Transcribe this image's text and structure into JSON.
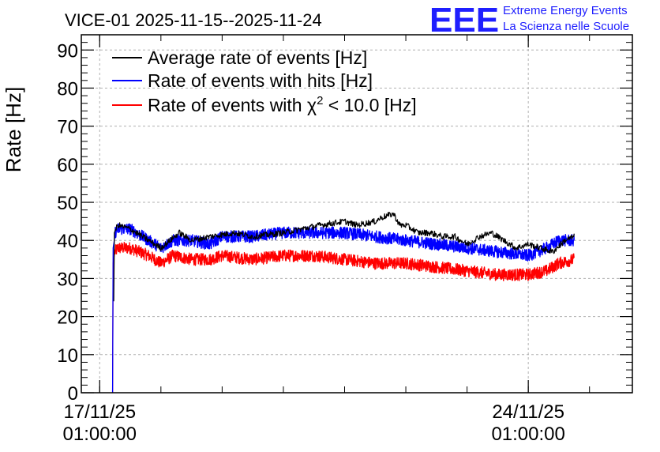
{
  "chart_data": {
    "type": "line",
    "title": "VICE-01 2025-11-15--2025-11-24",
    "ylabel": "Rate [Hz]",
    "xlabel": "",
    "ylim": [
      0,
      94
    ],
    "xlim_days": [
      -0.3,
      8.7
    ],
    "y_ticks": [
      0,
      10,
      20,
      30,
      40,
      50,
      60,
      70,
      80,
      90
    ],
    "x_ticks": [
      {
        "day": 0,
        "date": "17/11/25",
        "time": "01:00:00"
      },
      {
        "day": 7,
        "date": "24/11/25",
        "time": "01:00:00"
      }
    ],
    "grid": true,
    "legend_position": "top-left",
    "series": [
      {
        "name": "Average rate of events [Hz]",
        "color": "#000000",
        "x_days": [
          0.23,
          0.24,
          0.26,
          0.3,
          0.5,
          1.0,
          1.3,
          1.5,
          1.8,
          2.2,
          2.5,
          3.0,
          3.3,
          3.6,
          4.0,
          4.2,
          4.5,
          4.6,
          4.8,
          4.9,
          5.0,
          5.2,
          5.4,
          5.6,
          5.8,
          6.0,
          6.2,
          6.4,
          6.6,
          6.8,
          7.0,
          7.2,
          7.4,
          7.6,
          7.75
        ],
        "values": [
          24,
          42,
          43,
          44,
          43,
          38,
          42,
          40,
          41,
          42,
          41,
          42,
          43,
          44,
          45,
          44,
          45,
          46,
          47,
          44,
          44,
          42,
          42,
          41,
          41,
          39,
          41,
          42,
          40,
          38,
          39,
          38,
          37,
          40,
          41
        ]
      },
      {
        "name": "Rate of events with hits [Hz]",
        "color": "#0000ff",
        "x_days": [
          0.21,
          0.22,
          0.25,
          0.3,
          0.5,
          0.8,
          1.0,
          1.2,
          1.5,
          1.8,
          2.0,
          2.5,
          3.0,
          3.5,
          4.0,
          4.5,
          5.0,
          5.5,
          6.0,
          6.5,
          7.0,
          7.3,
          7.5,
          7.75
        ],
        "values": [
          0,
          38,
          42,
          43,
          43,
          40,
          38,
          40,
          40,
          39,
          41,
          41,
          42,
          42,
          42,
          41,
          40,
          39,
          38,
          37,
          36,
          38,
          40,
          40
        ]
      },
      {
        "name": "Rate of events with χ² < 10.0 [Hz]",
        "color": "#ff0000",
        "x_days": [
          0.21,
          0.22,
          0.25,
          0.3,
          0.5,
          0.8,
          1.0,
          1.2,
          1.5,
          1.8,
          2.0,
          2.5,
          3.0,
          3.5,
          4.0,
          4.5,
          5.0,
          5.5,
          6.0,
          6.5,
          7.0,
          7.3,
          7.5,
          7.75
        ],
        "values": [
          0,
          34,
          37,
          38,
          38,
          36,
          34,
          36,
          35,
          35,
          36,
          35,
          36,
          36,
          35,
          34,
          34,
          33,
          32,
          31,
          31,
          32,
          34,
          35
        ]
      }
    ]
  },
  "legend": {
    "entries": [
      {
        "label": "Average rate of events [Hz]",
        "color": "#000000"
      },
      {
        "label": "Rate of events with hits [Hz]",
        "color": "#0000ff"
      },
      {
        "prefix": "Rate of events with ",
        "chi": "χ",
        "sup": "2",
        "suffix": " < 10.0 [Hz]",
        "color": "#ff0000"
      }
    ]
  },
  "logo": {
    "big": "EEE",
    "line1": "Extreme Energy Events",
    "line2": "La Scienza nelle Scuole",
    "color": "#1f1fff"
  }
}
